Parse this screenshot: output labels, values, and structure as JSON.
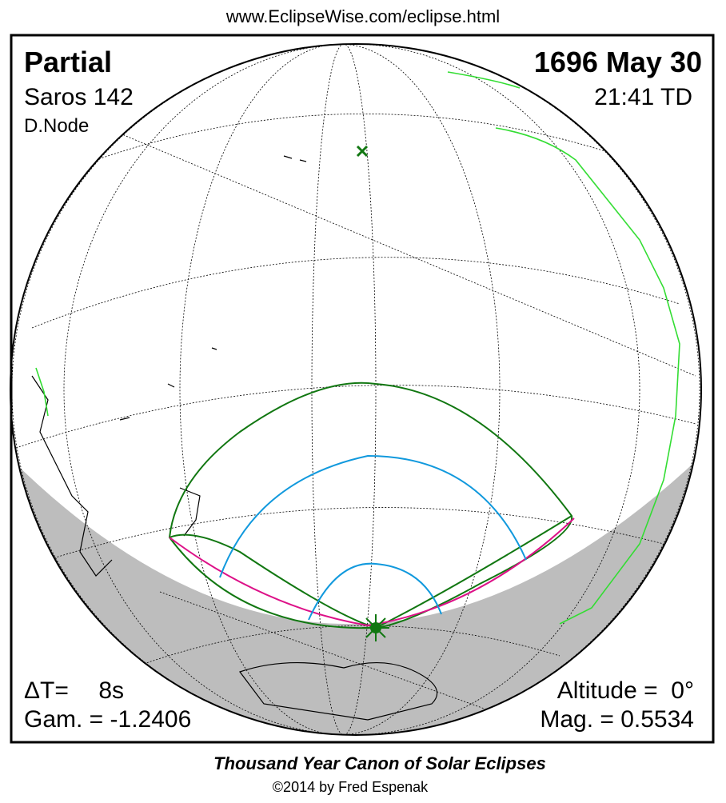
{
  "header": {
    "url": "www.EclipseWise.com/eclipse.html",
    "type": "Partial",
    "saros": "Saros 142",
    "node": "D.Node",
    "date": "1696 May 30",
    "time": "21:41 TD"
  },
  "stats": {
    "delta_t_label": "ΔT=",
    "delta_t_value": "8s",
    "gamma": "Gam. = -1.2406",
    "altitude": "Altitude =  0°",
    "magnitude": "Mag. = 0.5534"
  },
  "footer": {
    "title": "Thousand Year Canon of Solar Eclipses",
    "copyright": "©2014 by Fred Espenak"
  }
}
